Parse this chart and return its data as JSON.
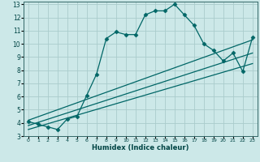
{
  "xlabel": "Humidex (Indice chaleur)",
  "bg_color": "#cce8e8",
  "grid_color": "#aacccc",
  "line_color": "#006666",
  "xlim": [
    -0.5,
    23.5
  ],
  "ylim": [
    3,
    13.2
  ],
  "xticks": [
    0,
    1,
    2,
    3,
    4,
    5,
    6,
    7,
    8,
    9,
    10,
    11,
    12,
    13,
    14,
    15,
    16,
    17,
    18,
    19,
    20,
    21,
    22,
    23
  ],
  "yticks": [
    3,
    4,
    5,
    6,
    7,
    8,
    9,
    10,
    11,
    12,
    13
  ],
  "line1_x": [
    0,
    1,
    2,
    3,
    4,
    5,
    6,
    7,
    8,
    9,
    10,
    11,
    12,
    13,
    14,
    15,
    16,
    17,
    18,
    19,
    20,
    21,
    22,
    23
  ],
  "line1_y": [
    4.1,
    3.9,
    3.7,
    3.5,
    4.3,
    4.5,
    6.1,
    7.7,
    10.4,
    10.9,
    10.7,
    10.7,
    12.2,
    12.5,
    12.5,
    13.0,
    12.2,
    11.4,
    10.0,
    9.5,
    8.7,
    9.3,
    7.9,
    10.5
  ],
  "line2_x": [
    0,
    23
  ],
  "line2_y": [
    3.5,
    8.5
  ],
  "line3_x": [
    0,
    23
  ],
  "line3_y": [
    3.8,
    9.3
  ],
  "line4_x": [
    0,
    23
  ],
  "line4_y": [
    4.2,
    10.3
  ]
}
